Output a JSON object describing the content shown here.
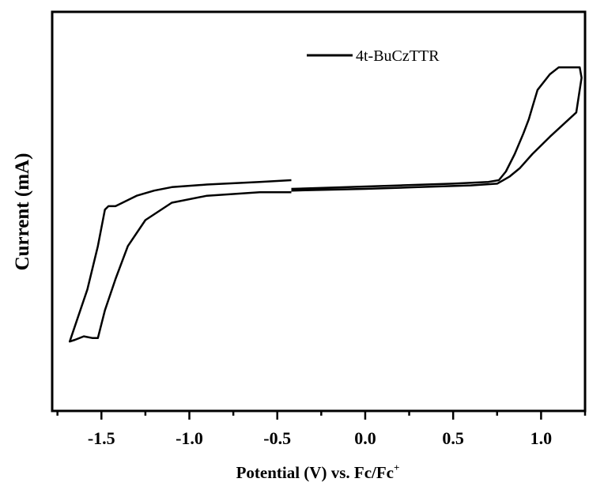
{
  "chart_data": {
    "type": "line",
    "xlabel": "Potential (V) vs. Fc/Fc",
    "xlabel_superscript": "+",
    "ylabel": "Current (mA)",
    "xlim": [
      -1.78,
      1.25
    ],
    "ylim": [
      -1.3,
      1.0
    ],
    "x_ticks": [
      -1.5,
      -1.0,
      -0.5,
      0.0,
      0.5,
      1.0
    ],
    "x_tick_labels": [
      "-1.5",
      "-1.0",
      "-0.5",
      "0.0",
      "0.5",
      "1.0"
    ],
    "y_ticks_shown": false,
    "grid": false,
    "legend_position": "top-right",
    "line_color": "#000000",
    "series": [
      {
        "name": "4t-BuCzTTR",
        "x": [
          -0.42,
          -0.6,
          -0.9,
          -1.1,
          -1.2,
          -1.3,
          -1.38,
          -1.42,
          -1.44,
          -1.46,
          -1.48,
          -1.52,
          -1.58,
          -1.64,
          -1.68,
          -1.65,
          -1.6,
          -1.55,
          -1.52,
          -1.48,
          -1.42,
          -1.35,
          -1.25,
          -1.1,
          -0.9,
          -0.6,
          -0.42
        ],
        "y": [
          0.03,
          0.02,
          0.005,
          -0.01,
          -0.03,
          -0.06,
          -0.1,
          -0.12,
          -0.12,
          -0.12,
          -0.14,
          -0.35,
          -0.6,
          -0.78,
          -0.9,
          -0.89,
          -0.87,
          -0.88,
          -0.88,
          -0.72,
          -0.54,
          -0.35,
          -0.2,
          -0.1,
          -0.06,
          -0.04,
          -0.04
        ]
      },
      {
        "name": "",
        "x": [
          -0.42,
          0.0,
          0.3,
          0.6,
          0.75,
          0.82,
          0.88,
          0.95,
          1.05,
          1.2,
          1.23,
          1.22,
          1.15,
          1.1,
          1.05,
          0.98,
          0.95,
          0.93,
          0.9,
          0.85,
          0.8,
          0.76,
          0.7,
          0.5,
          0.2,
          -0.1,
          -0.42
        ],
        "y": [
          -0.03,
          -0.02,
          -0.01,
          0.0,
          0.01,
          0.05,
          0.1,
          0.18,
          0.28,
          0.42,
          0.62,
          0.68,
          0.68,
          0.68,
          0.64,
          0.55,
          0.45,
          0.38,
          0.3,
          0.18,
          0.08,
          0.03,
          0.02,
          0.01,
          0.0,
          -0.01,
          -0.02
        ]
      }
    ]
  }
}
